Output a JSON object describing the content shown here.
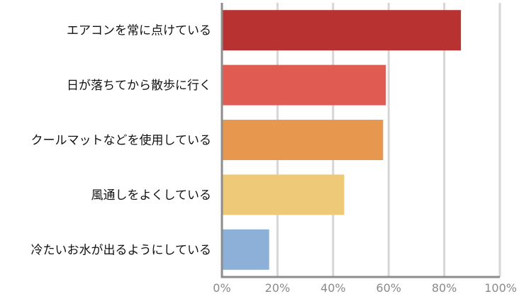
{
  "chart_data": {
    "type": "bar",
    "orientation": "horizontal",
    "categories": [
      "エアコンを常に点けている",
      "日が落ちてから散歩に行く",
      "クールマットなどを使用している",
      "風通しをよくしている",
      "冷たいお水が出るようにしている"
    ],
    "values": [
      86,
      59,
      58,
      44,
      17
    ],
    "unit": "%",
    "colors": [
      "#b93232",
      "#e05c52",
      "#e8974f",
      "#edc978",
      "#8db0d8"
    ],
    "xlim": [
      0,
      100
    ],
    "ticks": [
      "0%",
      "20%",
      "40%",
      "60%",
      "80%",
      "100%"
    ],
    "tick_values": [
      0,
      20,
      40,
      60,
      80,
      100
    ],
    "grid": true,
    "legend": "none",
    "title": "",
    "xlabel": "",
    "ylabel": ""
  }
}
